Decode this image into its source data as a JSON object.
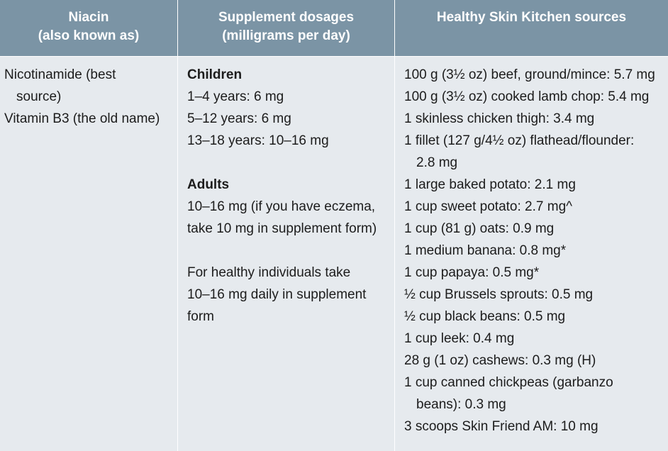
{
  "headers": {
    "col1": [
      "Niacin",
      "(also known as)"
    ],
    "col2": [
      "Supplement dosages",
      "(milligrams per day)"
    ],
    "col3": [
      "Healthy Skin Kitchen sources"
    ]
  },
  "names": {
    "line1": "Nicotinamide (best",
    "line2": "source)",
    "line3": "Vitamin B3 (the old name)"
  },
  "dosages": {
    "children_heading": "Children",
    "children": [
      "1–4 years: 6 mg",
      "5–12 years: 6 mg",
      "13–18 years: 10–16 mg"
    ],
    "adults_heading": "Adults",
    "adults": [
      "10–16 mg (if you have eczema,",
      "take 10 mg in supplement form)"
    ],
    "healthy": [
      "For healthy individuals take",
      "10–16 mg daily in supplement",
      "form"
    ]
  },
  "sources": [
    "100 g (3½ oz) beef, ground/mince: 5.7 mg",
    "100 g (3½ oz) cooked lamb chop: 5.4 mg",
    "1 skinless chicken thigh: 3.4 mg",
    "1 fillet (127 g/4½ oz) flathead/flounder:",
    "2.8 mg",
    "1 large baked potato: 2.1 mg",
    "1 cup sweet potato: 2.7 mg^",
    "1 cup (81 g) oats: 0.9 mg",
    "1 medium banana: 0.8 mg*",
    "1 cup papaya: 0.5 mg*",
    "½ cup Brussels sprouts: 0.5 mg",
    "½ cup black beans: 0.5 mg",
    "1 cup leek: 0.4 mg",
    "28 g (1 oz) cashews: 0.3 mg (H)",
    "1 cup canned chickpeas (garbanzo",
    "beans): 0.3 mg",
    "3 scoops Skin Friend AM: 10 mg"
  ]
}
